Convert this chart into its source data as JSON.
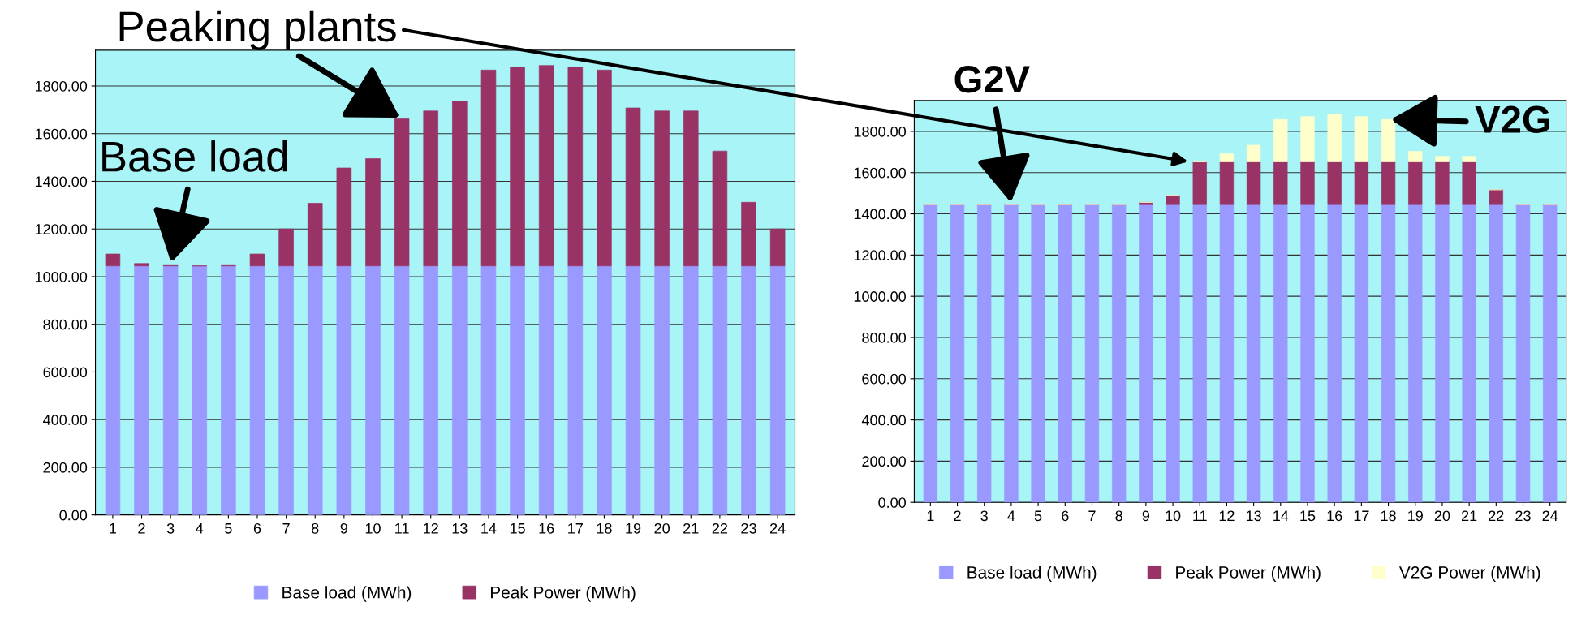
{
  "chart_data": [
    {
      "type": "bar",
      "stacked": true,
      "categories": [
        "1",
        "2",
        "3",
        "4",
        "5",
        "6",
        "7",
        "8",
        "9",
        "10",
        "11",
        "12",
        "13",
        "14",
        "15",
        "16",
        "17",
        "18",
        "19",
        "20",
        "21",
        "22",
        "23",
        "24"
      ],
      "series": [
        {
          "name": "Base load (MWh)",
          "color": "#9999ff",
          "values": [
            1045,
            1045,
            1045,
            1045,
            1045,
            1045,
            1045,
            1045,
            1045,
            1045,
            1045,
            1045,
            1045,
            1045,
            1045,
            1045,
            1045,
            1045,
            1045,
            1045,
            1045,
            1045,
            1045,
            1045
          ]
        },
        {
          "name": "Peak Power (MWh)",
          "color": "#993366",
          "values": [
            50,
            10,
            5,
            0,
            5,
            50,
            155,
            263,
            411,
            450,
            617,
            650,
            690,
            822,
            835,
            841,
            835,
            822,
            663,
            650,
            650,
            482,
            267,
            155
          ]
        }
      ],
      "ylim": [
        0,
        1950
      ],
      "yticks": [
        {
          "value": 0,
          "label": "0.00"
        },
        {
          "value": 200,
          "label": "200.00"
        },
        {
          "value": 400,
          "label": "400.00"
        },
        {
          "value": 600,
          "label": "600.00"
        },
        {
          "value": 800,
          "label": "800.00"
        },
        {
          "value": 1000,
          "label": "1000.00"
        },
        {
          "value": 1200,
          "label": "1200.00"
        },
        {
          "value": 1400,
          "label": "1400.00"
        },
        {
          "value": 1600,
          "label": "1600.00"
        },
        {
          "value": 1800,
          "label": "1800.00"
        }
      ],
      "grid": "y",
      "legend": "bottom",
      "annotations": [
        {
          "text": "Base load",
          "x": "3",
          "y": 1050
        },
        {
          "text": "Peaking plants",
          "x": "11",
          "y": 1662
        }
      ]
    },
    {
      "type": "bar",
      "stacked": true,
      "categories": [
        "1",
        "2",
        "3",
        "4",
        "5",
        "6",
        "7",
        "8",
        "9",
        "10",
        "11",
        "12",
        "13",
        "14",
        "15",
        "16",
        "17",
        "18",
        "19",
        "20",
        "21",
        "22",
        "23",
        "24"
      ],
      "series": [
        {
          "name": "Base load (MWh)",
          "color": "#9999ff",
          "values": [
            1445,
            1445,
            1445,
            1445,
            1445,
            1445,
            1445,
            1445,
            1445,
            1445,
            1445,
            1445,
            1445,
            1445,
            1445,
            1445,
            1445,
            1445,
            1445,
            1445,
            1445,
            1445,
            1445,
            1445
          ]
        },
        {
          "name": "Peak Power (MWh)",
          "color": "#993366",
          "values": [
            0,
            0,
            0,
            0,
            0,
            0,
            0,
            0,
            11,
            45,
            207,
            207,
            207,
            207,
            207,
            207,
            207,
            207,
            207,
            207,
            207,
            72,
            0,
            0
          ]
        },
        {
          "name": "V2G Power (MWh)",
          "color": "#ffffcc",
          "values": [
            0,
            0,
            0,
            0,
            0,
            0,
            0,
            0,
            0,
            0,
            0,
            40,
            81,
            206,
            220,
            231,
            220,
            206,
            51,
            27,
            27,
            0,
            0,
            0
          ]
        }
      ],
      "ylim": [
        0,
        1950
      ],
      "yticks": [
        {
          "value": 0,
          "label": "0.00"
        },
        {
          "value": 200,
          "label": "200.00"
        },
        {
          "value": 400,
          "label": "400.00"
        },
        {
          "value": 600,
          "label": "600.00"
        },
        {
          "value": 800,
          "label": "800.00"
        },
        {
          "value": 1000,
          "label": "1000.00"
        },
        {
          "value": 1200,
          "label": "1200.00"
        },
        {
          "value": 1400,
          "label": "1400.00"
        },
        {
          "value": 1600,
          "label": "1600.00"
        },
        {
          "value": 1800,
          "label": "1800.00"
        }
      ],
      "grid": "y",
      "legend": "bottom",
      "annotations": [
        {
          "text": "G2V",
          "x": "4",
          "y": 1445
        },
        {
          "text": "V2G",
          "x": "18",
          "y": 1858
        }
      ]
    }
  ]
}
